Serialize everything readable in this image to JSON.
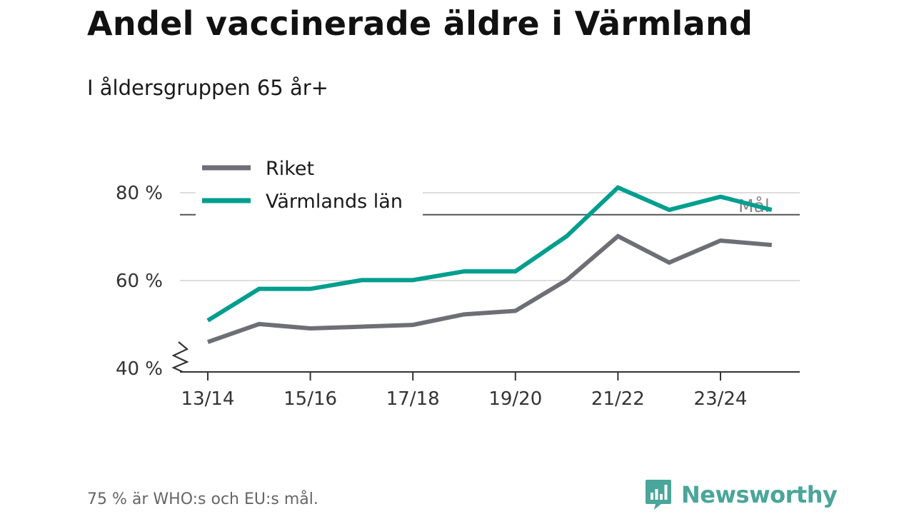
{
  "title": "Andel vaccinerade äldre i Värmland",
  "subtitle": "I åldersgruppen 65 år+",
  "footnote": "75 % är WHO:s och EU:s mål.",
  "brand": {
    "name": "Newsworthy",
    "color": "#4aa59a"
  },
  "chart_data": {
    "type": "line",
    "title": "Andel vaccinerade äldre i Värmland",
    "subtitle": "I åldersgruppen 65 år+",
    "xlabel": "",
    "ylabel": "",
    "x": [
      "13/14",
      "14/15",
      "15/16",
      "16/17",
      "17/18",
      "18/19",
      "19/20",
      "20/21",
      "21/22",
      "22/23",
      "23/24",
      "24/25"
    ],
    "x_tick_labels": [
      "13/14",
      "15/16",
      "17/18",
      "19/20",
      "21/22",
      "23/24"
    ],
    "y_ticks": [
      40,
      60,
      80
    ],
    "y_tick_labels": [
      "40 %",
      "60 %",
      "80 %"
    ],
    "ylim": [
      40,
      82
    ],
    "axis_break": true,
    "grid": true,
    "legend_position": "top-left",
    "series": [
      {
        "name": "Riket",
        "color": "#6e6e76",
        "values": [
          46.0,
          50.1,
          49.1,
          49.5,
          49.9,
          52.3,
          53.1,
          60.1,
          70.1,
          64.1,
          69.1,
          68.1
        ]
      },
      {
        "name": "Värmlands län",
        "color": "#009e8e",
        "values": [
          50.9,
          58.1,
          58.1,
          60.1,
          60.1,
          62.1,
          62.1,
          70.1,
          81.2,
          76.1,
          79.1,
          76.1
        ]
      }
    ],
    "reference_line": {
      "value": 75,
      "label": "Mål",
      "color": "#555555"
    }
  }
}
